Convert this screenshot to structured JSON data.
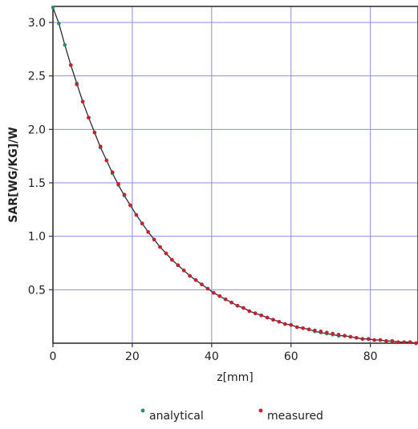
{
  "chart_data": {
    "type": "scatter",
    "xlabel": "z[mm]",
    "ylabel": "SAR[WG/KG]/W",
    "xlim": [
      0,
      92
    ],
    "ylim": [
      0,
      3.15
    ],
    "xticks": [
      "0",
      "20",
      "40",
      "60",
      "80"
    ],
    "yticks": [
      "0.5",
      "1.0",
      "1.5",
      "2.0",
      "2.5",
      "3.0"
    ],
    "grid": true,
    "legend_position": "bottom-center",
    "series": [
      {
        "name": "analytical",
        "color": "#2e8b6e",
        "marker": "circle",
        "x": [
          0,
          1.5,
          3,
          4.5,
          6,
          7.5,
          9,
          10.5,
          12,
          13.5,
          15,
          16.5,
          18,
          19.5,
          21,
          22.5,
          24,
          25.5,
          27,
          28.5,
          30,
          31.5,
          33,
          34.5,
          36,
          37.5,
          39,
          40.5,
          42,
          43.5,
          45,
          46.5,
          48,
          49.5,
          51,
          52.5,
          54,
          55.5,
          57,
          58.5,
          60,
          61.5,
          63,
          64.5,
          66,
          67.5,
          69,
          70.5,
          72,
          73.5,
          75,
          76.5,
          78,
          79.5,
          81,
          82.5,
          84,
          85.5,
          87,
          88.5,
          90,
          91.5
        ],
        "y": [
          3.14,
          2.99,
          2.79,
          2.6,
          2.43,
          2.26,
          2.11,
          1.97,
          1.83,
          1.71,
          1.59,
          1.48,
          1.38,
          1.29,
          1.2,
          1.12,
          1.04,
          0.97,
          0.9,
          0.84,
          0.78,
          0.73,
          0.68,
          0.63,
          0.59,
          0.55,
          0.51,
          0.47,
          0.44,
          0.41,
          0.38,
          0.35,
          0.33,
          0.3,
          0.28,
          0.26,
          0.24,
          0.22,
          0.2,
          0.18,
          0.17,
          0.15,
          0.14,
          0.13,
          0.11,
          0.1,
          0.09,
          0.08,
          0.07,
          0.07,
          0.06,
          0.05,
          0.04,
          0.04,
          0.03,
          0.03,
          0.02,
          0.02,
          0.01,
          0.01,
          0.01,
          0.0
        ]
      },
      {
        "name": "measured",
        "color": "#c8202a",
        "marker": "circle",
        "x": [
          4.5,
          6,
          7.5,
          9,
          10.5,
          12,
          13.5,
          15,
          16.5,
          18,
          19.5,
          21,
          22.5,
          24,
          25.5,
          27,
          28.5,
          30,
          31.5,
          33,
          34.5,
          36,
          37.5,
          39,
          40.5,
          42,
          43.5,
          45,
          46.5,
          48,
          49.5,
          51,
          52.5,
          54,
          55.5,
          57,
          58.5,
          60,
          61.5,
          63,
          64.5,
          66,
          67.5,
          69,
          70.5,
          72,
          73.5,
          75,
          76.5,
          78,
          79.5,
          81,
          82.5,
          84,
          85.5,
          87,
          88.5,
          90,
          91.5
        ],
        "y": [
          2.6,
          2.42,
          2.26,
          2.11,
          1.97,
          1.84,
          1.71,
          1.6,
          1.49,
          1.39,
          1.29,
          1.2,
          1.12,
          1.04,
          0.97,
          0.9,
          0.84,
          0.78,
          0.73,
          0.68,
          0.63,
          0.59,
          0.55,
          0.51,
          0.47,
          0.44,
          0.41,
          0.38,
          0.35,
          0.33,
          0.3,
          0.28,
          0.26,
          0.24,
          0.22,
          0.2,
          0.18,
          0.17,
          0.15,
          0.14,
          0.13,
          0.12,
          0.11,
          0.1,
          0.09,
          0.08,
          0.07,
          0.06,
          0.05,
          0.04,
          0.04,
          0.03,
          0.03,
          0.02,
          0.02,
          0.01,
          0.01,
          0.01,
          0.0
        ]
      }
    ]
  }
}
